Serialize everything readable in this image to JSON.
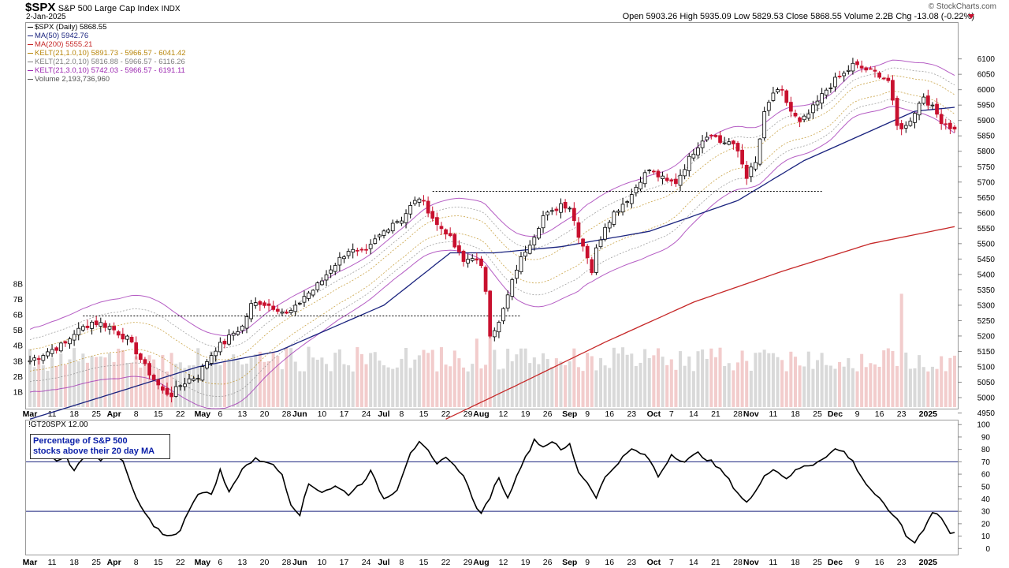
{
  "header": {
    "symbol": "$SPX",
    "name": "S&P 500 Large Cap Index",
    "exchange": "INDX",
    "date": "2-Jan-2025",
    "brand": "© StockCharts.com",
    "ohlc": "Open 5903.26  High 5935.09  Low 5829.53  Close 5868.55  Volume 2.2B  Chg -13.08 (-0.22%)"
  },
  "legend": [
    {
      "text": "$SPX (Daily) 5868.55",
      "color": "#000000"
    },
    {
      "text": "MA(50) 5942.76",
      "color": "#1a237e"
    },
    {
      "text": "MA(200) 5555.21",
      "color": "#c62828"
    },
    {
      "text": "KELT(21,1.0,10) 5891.73 - 5966.57 - 6041.42",
      "color": "#b8860b"
    },
    {
      "text": "KELT(21,2.0,10) 5816.88 - 5966.57 - 6116.26",
      "color": "#808080"
    },
    {
      "text": "KELT(21,3.0,10) 5742.03 - 5966.57 - 6191.11",
      "color": "#9c27b0"
    },
    {
      "text": "Volume 2,193,736,960",
      "color": "#555555"
    }
  ],
  "indicator": {
    "label": "!GT20SPX 12.00",
    "annotation_line1": "Percentage of S&P 500",
    "annotation_line2": "stocks above their 20 day MA"
  },
  "colors": {
    "up_candle": "#ffffff",
    "down_candle": "#c8102e",
    "ma50": "#1a237e",
    "ma200": "#c62828",
    "kelt1": "#b8860b",
    "kelt2": "#808080",
    "kelt3": "#9c27b0",
    "volume_up": "#d9d9d9",
    "volume_down": "#f2cccc"
  },
  "chart_data": [
    {
      "type": "candlestick",
      "title": "$SPX S&P 500 Large Cap Index",
      "ylim": [
        4930,
        6120
      ],
      "y_ticks": [
        4950,
        5000,
        5050,
        5100,
        5150,
        5200,
        5250,
        5300,
        5350,
        5400,
        5450,
        5500,
        5550,
        5600,
        5650,
        5700,
        5750,
        5800,
        5850,
        5900,
        5950,
        6000,
        6050,
        6100
      ],
      "volume_ticks": [
        "1B",
        "2B",
        "3B",
        "4B",
        "5B",
        "6B",
        "7B",
        "8B"
      ],
      "x_tick_labels": [
        "Mar",
        "11",
        "18",
        "25",
        "Apr",
        "8",
        "15",
        "22",
        "May",
        "6",
        "13",
        "20",
        "28",
        "Jun",
        "10",
        "17",
        "24",
        "Jul",
        "8",
        "15",
        "22",
        "29",
        "Aug",
        "12",
        "19",
        "26",
        "Sep",
        "9",
        "16",
        "23",
        "Oct",
        "7",
        "14",
        "21",
        "28",
        "Nov",
        "11",
        "18",
        "25",
        "Dec",
        "9",
        "16",
        "23",
        "2025"
      ],
      "x_tick_index": [
        0,
        5,
        10,
        15,
        19,
        24,
        29,
        34,
        39,
        43,
        48,
        53,
        58,
        61,
        66,
        71,
        76,
        80,
        84,
        89,
        94,
        99,
        102,
        107,
        112,
        117,
        122,
        126,
        131,
        136,
        141,
        145,
        150,
        155,
        160,
        163,
        168,
        173,
        178,
        182,
        187,
        192,
        197,
        203
      ],
      "bar_count": 210,
      "close_anchors": [
        [
          0,
          5120
        ],
        [
          4,
          5150
        ],
        [
          8,
          5175
        ],
        [
          10,
          5210
        ],
        [
          14,
          5245
        ],
        [
          16,
          5240
        ],
        [
          18,
          5230
        ],
        [
          20,
          5210
        ],
        [
          22,
          5190
        ],
        [
          24,
          5150
        ],
        [
          26,
          5100
        ],
        [
          28,
          5060
        ],
        [
          30,
          5020
        ],
        [
          32,
          5010
        ],
        [
          34,
          5040
        ],
        [
          36,
          5060
        ],
        [
          38,
          5070
        ],
        [
          40,
          5120
        ],
        [
          42,
          5160
        ],
        [
          44,
          5180
        ],
        [
          46,
          5210
        ],
        [
          48,
          5230
        ],
        [
          50,
          5300
        ],
        [
          52,
          5310
        ],
        [
          54,
          5300
        ],
        [
          56,
          5290
        ],
        [
          58,
          5270
        ],
        [
          60,
          5290
        ],
        [
          62,
          5330
        ],
        [
          64,
          5350
        ],
        [
          66,
          5380
        ],
        [
          68,
          5420
        ],
        [
          70,
          5450
        ],
        [
          72,
          5480
        ],
        [
          74,
          5470
        ],
        [
          76,
          5470
        ],
        [
          78,
          5510
        ],
        [
          80,
          5540
        ],
        [
          82,
          5570
        ],
        [
          84,
          5580
        ],
        [
          86,
          5620
        ],
        [
          88,
          5650
        ],
        [
          90,
          5610
        ],
        [
          92,
          5560
        ],
        [
          94,
          5540
        ],
        [
          96,
          5490
        ],
        [
          98,
          5440
        ],
        [
          100,
          5460
        ],
        [
          102,
          5420
        ],
        [
          103,
          5350
        ],
        [
          104,
          5210
        ],
        [
          106,
          5240
        ],
        [
          108,
          5330
        ],
        [
          110,
          5420
        ],
        [
          112,
          5480
        ],
        [
          114,
          5530
        ],
        [
          116,
          5590
        ],
        [
          118,
          5600
        ],
        [
          120,
          5630
        ],
        [
          122,
          5620
        ],
        [
          124,
          5530
        ],
        [
          126,
          5460
        ],
        [
          127,
          5410
        ],
        [
          128,
          5480
        ],
        [
          130,
          5560
        ],
        [
          132,
          5600
        ],
        [
          134,
          5630
        ],
        [
          136,
          5660
        ],
        [
          138,
          5710
        ],
        [
          140,
          5740
        ],
        [
          142,
          5720
        ],
        [
          144,
          5700
        ],
        [
          146,
          5700
        ],
        [
          148,
          5750
        ],
        [
          150,
          5800
        ],
        [
          152,
          5840
        ],
        [
          154,
          5860
        ],
        [
          156,
          5830
        ],
        [
          158,
          5830
        ],
        [
          160,
          5800
        ],
        [
          162,
          5720
        ],
        [
          164,
          5760
        ],
        [
          166,
          5920
        ],
        [
          168,
          5990
        ],
        [
          170,
          5990
        ],
        [
          172,
          5930
        ],
        [
          174,
          5890
        ],
        [
          176,
          5920
        ],
        [
          178,
          5960
        ],
        [
          180,
          6000
        ],
        [
          182,
          6030
        ],
        [
          184,
          6050
        ],
        [
          186,
          6080
        ],
        [
          188,
          6070
        ],
        [
          190,
          6060
        ],
        [
          192,
          6050
        ],
        [
          194,
          6030
        ],
        [
          196,
          5880
        ],
        [
          198,
          5880
        ],
        [
          200,
          5930
        ],
        [
          202,
          5980
        ],
        [
          204,
          5940
        ],
        [
          206,
          5900
        ],
        [
          208,
          5880
        ],
        [
          209,
          5868.55
        ]
      ],
      "ma50_anchors": [
        [
          0,
          4930
        ],
        [
          18,
          5010
        ],
        [
          38,
          5100
        ],
        [
          56,
          5150
        ],
        [
          80,
          5300
        ],
        [
          95,
          5470
        ],
        [
          105,
          5470
        ],
        [
          120,
          5490
        ],
        [
          140,
          5540
        ],
        [
          160,
          5640
        ],
        [
          175,
          5770
        ],
        [
          200,
          5930
        ],
        [
          209,
          5942.76
        ]
      ],
      "ma200_anchors": [
        [
          94,
          4930
        ],
        [
          110,
          5040
        ],
        [
          130,
          5180
        ],
        [
          150,
          5310
        ],
        [
          170,
          5410
        ],
        [
          190,
          5500
        ],
        [
          209,
          5555.21
        ]
      ],
      "resistance_lines": [
        {
          "value": 5265,
          "from_index": 12,
          "to_index": 111
        },
        {
          "value": 5670,
          "from_index": 91,
          "to_index": 179
        }
      ]
    },
    {
      "type": "line",
      "title": "!GT20SPX",
      "ylim": [
        0,
        100
      ],
      "y_ticks": [
        0,
        10,
        20,
        30,
        40,
        50,
        60,
        70,
        80,
        90,
        100
      ],
      "reference_lines": [
        30,
        70
      ],
      "last_value": 12.0,
      "anchors": [
        [
          0,
          75
        ],
        [
          3,
          80
        ],
        [
          6,
          70
        ],
        [
          8,
          76
        ],
        [
          10,
          62
        ],
        [
          13,
          80
        ],
        [
          16,
          72
        ],
        [
          18,
          79
        ],
        [
          21,
          70
        ],
        [
          24,
          40
        ],
        [
          28,
          17
        ],
        [
          31,
          10
        ],
        [
          34,
          14
        ],
        [
          36,
          32
        ],
        [
          38,
          45
        ],
        [
          41,
          44
        ],
        [
          43,
          63
        ],
        [
          45,
          45
        ],
        [
          48,
          65
        ],
        [
          51,
          72
        ],
        [
          54,
          70
        ],
        [
          57,
          60
        ],
        [
          59,
          36
        ],
        [
          61,
          28
        ],
        [
          63,
          52
        ],
        [
          66,
          46
        ],
        [
          69,
          50
        ],
        [
          72,
          44
        ],
        [
          75,
          53
        ],
        [
          77,
          62
        ],
        [
          80,
          40
        ],
        [
          83,
          48
        ],
        [
          86,
          78
        ],
        [
          88,
          85
        ],
        [
          90,
          78
        ],
        [
          92,
          67
        ],
        [
          94,
          75
        ],
        [
          96,
          66
        ],
        [
          98,
          60
        ],
        [
          100,
          40
        ],
        [
          102,
          27
        ],
        [
          104,
          42
        ],
        [
          106,
          58
        ],
        [
          108,
          40
        ],
        [
          110,
          60
        ],
        [
          112,
          73
        ],
        [
          114,
          88
        ],
        [
          116,
          82
        ],
        [
          118,
          87
        ],
        [
          120,
          79
        ],
        [
          122,
          84
        ],
        [
          124,
          62
        ],
        [
          126,
          53
        ],
        [
          128,
          42
        ],
        [
          130,
          57
        ],
        [
          133,
          70
        ],
        [
          136,
          80
        ],
        [
          138,
          77
        ],
        [
          140,
          72
        ],
        [
          142,
          58
        ],
        [
          145,
          76
        ],
        [
          148,
          70
        ],
        [
          151,
          77
        ],
        [
          154,
          70
        ],
        [
          157,
          60
        ],
        [
          160,
          45
        ],
        [
          162,
          37
        ],
        [
          164,
          45
        ],
        [
          166,
          60
        ],
        [
          168,
          64
        ],
        [
          171,
          57
        ],
        [
          174,
          65
        ],
        [
          177,
          68
        ],
        [
          180,
          75
        ],
        [
          182,
          80
        ],
        [
          184,
          78
        ],
        [
          186,
          70
        ],
        [
          189,
          52
        ],
        [
          192,
          40
        ],
        [
          194,
          30
        ],
        [
          196,
          25
        ],
        [
          198,
          10
        ],
        [
          200,
          5
        ],
        [
          202,
          16
        ],
        [
          204,
          30
        ],
        [
          206,
          25
        ],
        [
          208,
          12
        ],
        [
          209,
          12
        ]
      ]
    }
  ]
}
